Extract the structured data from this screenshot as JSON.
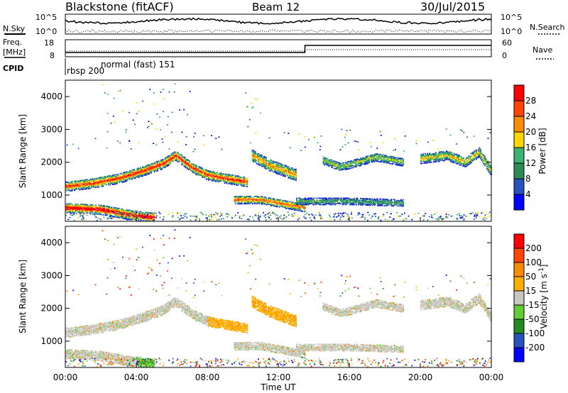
{
  "header": {
    "station": "Blackstone (fitACF)",
    "beam": "Beam 12",
    "date": "30/Jul/2015"
  },
  "summary": {
    "nsky_label": "N.Sky",
    "nsearch_label": "N.Search",
    "freq_label_top": "Freq.",
    "freq_label_bottom": "[MHz]",
    "nave_label": "Nave",
    "cpid_label": "CPID",
    "noise_ticks": [
      "10^5",
      "10^0"
    ],
    "freq_ticks": [
      "18",
      "8"
    ],
    "nave_ticks": [
      "60",
      "0"
    ],
    "cpid_segments": [
      {
        "label": "rbsp 200",
        "start_hour": 0
      },
      {
        "label": "normal (fast) 151",
        "start_hour": 1.9
      }
    ]
  },
  "colors": {
    "power": [
      "#0000ff",
      "#2a52be",
      "#2e8b57",
      "#3cb371",
      "#ffd700",
      "#ff8c00",
      "#ff4500",
      "#ff0000"
    ],
    "velocity": [
      "#ff0000",
      "#ff4500",
      "#ff8c00",
      "#ffb000",
      "#c8c8c0",
      "#66cc33",
      "#228b22",
      "#2a52be",
      "#0000ff"
    ]
  },
  "chart_data": [
    {
      "type": "heatmap",
      "panel": "power",
      "ylabel": "Slant Range [km]",
      "xlabel": "",
      "yticks": [
        1000,
        2000,
        3000,
        4000
      ],
      "ylim": [
        200,
        4500
      ],
      "colorbar_label": "Power [dB]",
      "colorbar_ticks": [
        4,
        8,
        12,
        16,
        20,
        24,
        28
      ],
      "bands": [
        {
          "start": 0,
          "end": 10.2,
          "ranges": [
            [
              0,
              1250
            ],
            [
              1.5,
              1350
            ],
            [
              3,
              1500
            ],
            [
              4.5,
              1750
            ],
            [
              5.5,
              1950
            ],
            [
              6.2,
              2200
            ],
            [
              7.2,
              1800
            ],
            [
              8,
              1600
            ],
            [
              9,
              1500
            ],
            [
              10.2,
              1400
            ]
          ],
          "width": 300,
          "core": 0.8
        },
        {
          "start": 0,
          "end": 5,
          "ranges": [
            [
              0,
              600
            ],
            [
              2,
              550
            ],
            [
              3.5,
              400
            ],
            [
              5,
              300
            ]
          ],
          "width": 300,
          "core": 1.0
        },
        {
          "start": 10.5,
          "end": 13,
          "ranges": [
            [
              10.5,
              2200
            ],
            [
              11.5,
              1900
            ],
            [
              12.5,
              1700
            ],
            [
              13,
              1600
            ]
          ],
          "width": 350,
          "core": 0.6
        },
        {
          "start": 9.5,
          "end": 13.5,
          "ranges": [
            [
              9.5,
              850
            ],
            [
              11,
              850
            ],
            [
              12.5,
              700
            ],
            [
              13.5,
              600
            ]
          ],
          "width": 250,
          "core": 0.7
        },
        {
          "start": 14.5,
          "end": 19,
          "ranges": [
            [
              14.5,
              2050
            ],
            [
              15.5,
              1850
            ],
            [
              16.5,
              2000
            ],
            [
              17.5,
              2150
            ],
            [
              19,
              2000
            ]
          ],
          "width": 250,
          "core": 0.4
        },
        {
          "start": 20,
          "end": 24,
          "ranges": [
            [
              20,
              2100
            ],
            [
              21.5,
              2200
            ],
            [
              22.5,
              2000
            ],
            [
              23.3,
              2300
            ],
            [
              24,
              1700
            ]
          ],
          "width": 300,
          "core": 0.5
        },
        {
          "start": 13,
          "end": 19,
          "ranges": [
            [
              13,
              800
            ],
            [
              16,
              800
            ],
            [
              19,
              750
            ]
          ],
          "width": 200,
          "core": 0.3
        }
      ]
    },
    {
      "type": "heatmap",
      "panel": "velocity",
      "ylabel": "Slant Range [km]",
      "xlabel": "Time UT",
      "yticks": [
        1000,
        2000,
        3000,
        4000
      ],
      "ylim": [
        200,
        4500
      ],
      "colorbar_label": "Velocity [m s^-1]",
      "colorbar_ticks": [
        200,
        100,
        50,
        15,
        -15,
        -50,
        -100,
        -200
      ],
      "xticks": [
        "00:00",
        "04:00",
        "08:00",
        "12:00",
        "16:00",
        "20:00",
        "00:00"
      ],
      "xlim_hours": [
        0,
        24
      ]
    }
  ]
}
